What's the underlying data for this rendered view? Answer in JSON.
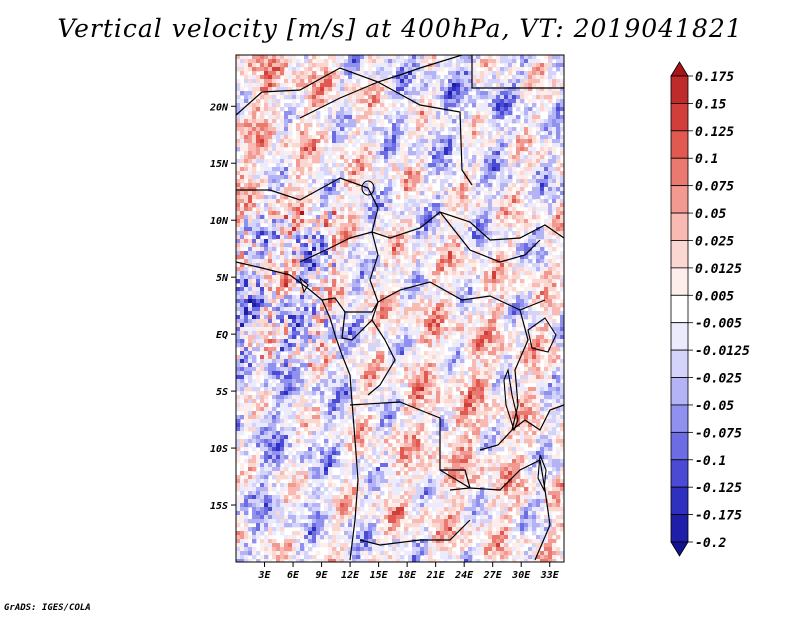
{
  "chart_data": {
    "type": "heatmap",
    "title": "Vertical velocity [m/s] at 400hPa, VT: 2019041821",
    "variable": "Vertical velocity",
    "units": "m/s",
    "level": "400hPa",
    "valid_time": "2019041821",
    "xlabel": "",
    "ylabel": "",
    "x_ticks": [
      "3E",
      "6E",
      "9E",
      "12E",
      "15E",
      "18E",
      "21E",
      "24E",
      "27E",
      "30E",
      "33E"
    ],
    "x_tick_values": [
      3,
      6,
      9,
      12,
      15,
      18,
      21,
      24,
      27,
      30,
      33
    ],
    "y_ticks": [
      "20N",
      "15N",
      "10N",
      "5N",
      "EQ",
      "5S",
      "10S",
      "15S"
    ],
    "y_tick_values": [
      20,
      15,
      10,
      5,
      0,
      -5,
      -10,
      -15
    ],
    "xlim": [
      0,
      34.5
    ],
    "ylim": [
      -20,
      24.5
    ],
    "colorbar": {
      "levels": [
        "0.175",
        "0.15",
        "0.125",
        "0.1",
        "0.075",
        "0.05",
        "0.025",
        "0.0125",
        "0.005",
        "-0.005",
        "-0.0125",
        "-0.025",
        "-0.05",
        "-0.075",
        "-0.1",
        "-0.125",
        "-0.175",
        "-0.2"
      ],
      "colors": [
        "#a8141a",
        "#bf2a2a",
        "#d23f3b",
        "#e05a52",
        "#ea7a70",
        "#f29a91",
        "#f8bab3",
        "#fbd7d2",
        "#fdeeec",
        "#ffffff",
        "#ebebfd",
        "#d4d4fb",
        "#b3b3f6",
        "#9090ee",
        "#6d6de3",
        "#4a4ad4",
        "#2f2fc0",
        "#1e1ea8",
        "#141490"
      ]
    }
  },
  "footer": "GrADS: IGES/COLA"
}
